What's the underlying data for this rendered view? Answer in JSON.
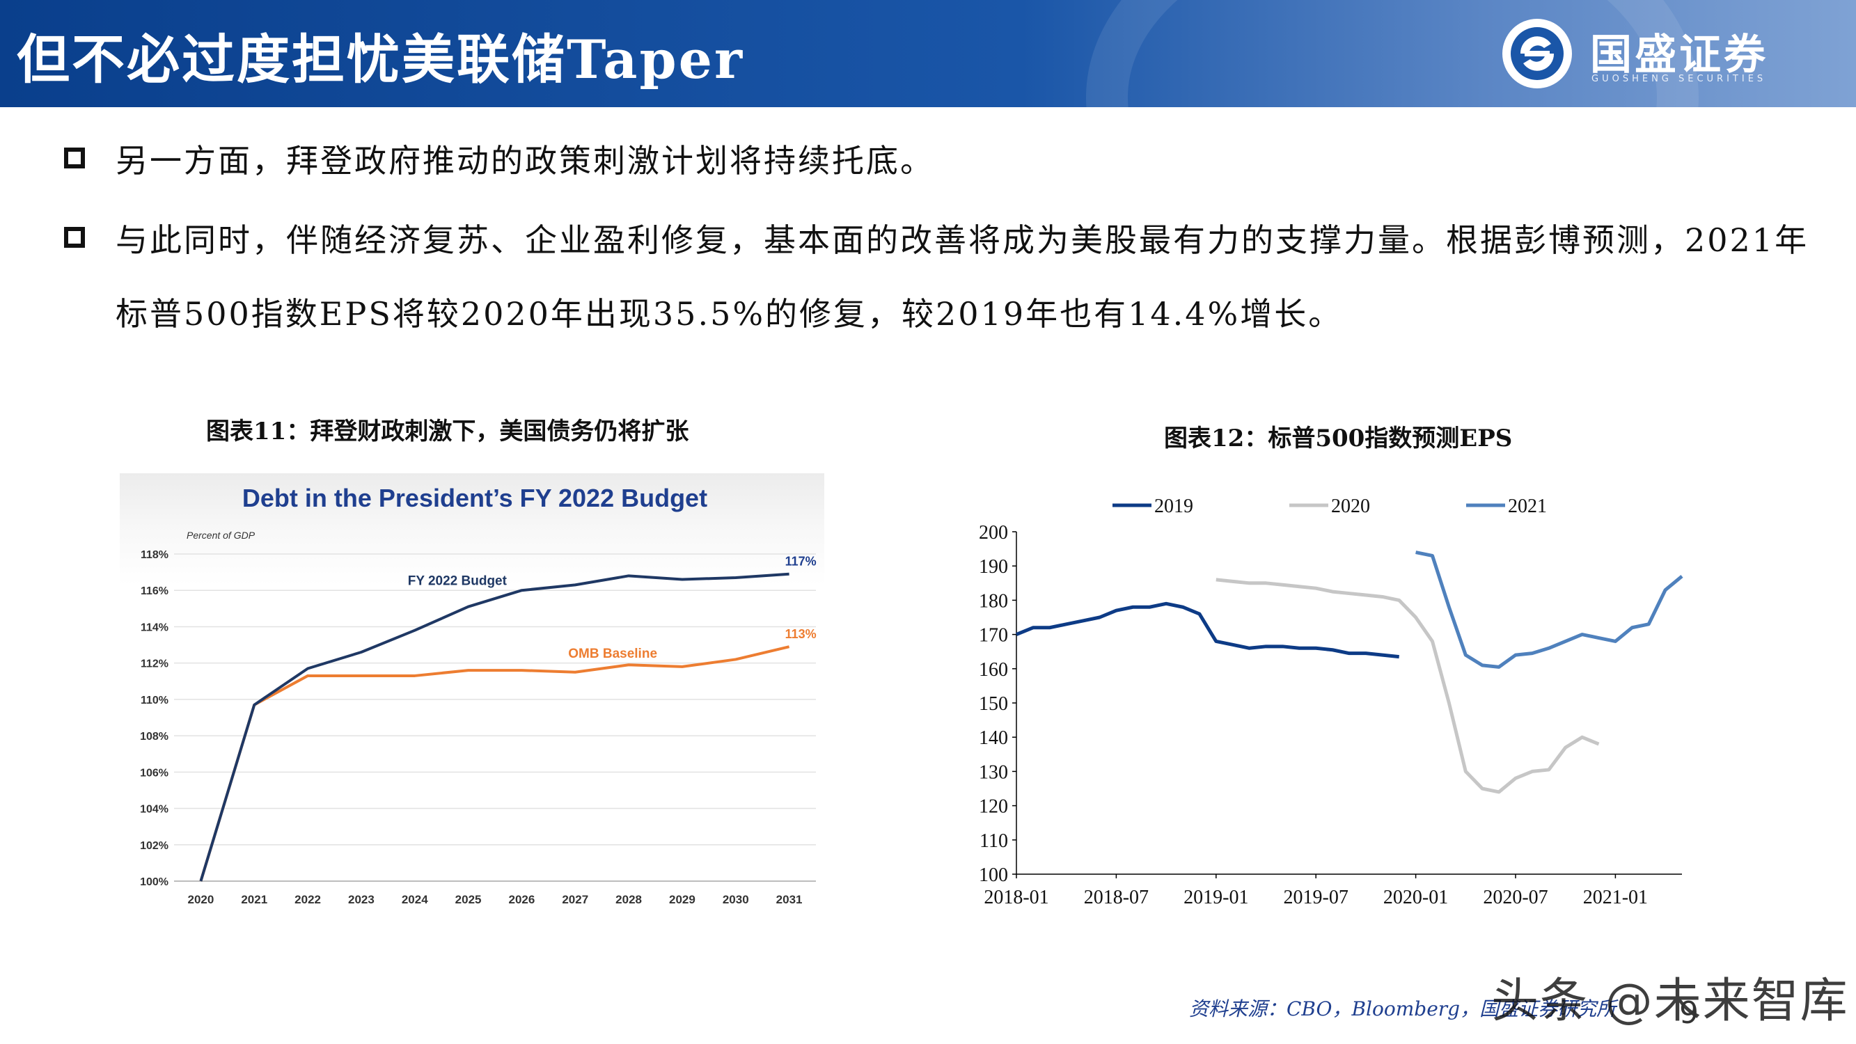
{
  "header": {
    "title": "但不必过度担忧美联储Taper",
    "brand_name": "国盛证券",
    "brand_sub": "GUOSHENG SECURITIES",
    "brand_icon": "guosheng-logo-icon"
  },
  "bullets": [
    {
      "text": "另一方面，拜登政府推动的政策刺激计划将持续托底。"
    },
    {
      "text": "与此同时，伴随经济复苏、企业盈利修复，基本面的改善将成为美股最有力的支撑力量。根据彭博预测，2021年标普500指数EPS将较2020年出现35.5%的修复，较2019年也有14.4%增长。"
    }
  ],
  "figures": {
    "fig11_title": "图表11：拜登财政刺激下，美国债务仍将扩张",
    "fig12_title": "图表12：标普500指数预测EPS"
  },
  "colors": {
    "header_blue": "#0a3f8c",
    "chart_navy": "#1f3864",
    "chart_orange": "#ed7d31",
    "eps_2019": "#0d3b86",
    "eps_2020": "#c6c6c6",
    "eps_2021": "#4f81bd"
  },
  "chart_data": [
    {
      "id": "fig11",
      "type": "line",
      "title": "Debt in the President’s FY 2022 Budget",
      "ylabel": "Percent of GDP",
      "ylim": [
        100,
        118
      ],
      "yticks": [
        "100%",
        "102%",
        "104%",
        "106%",
        "108%",
        "110%",
        "112%",
        "114%",
        "116%",
        "118%"
      ],
      "categories": [
        "2020",
        "2021",
        "2022",
        "2023",
        "2024",
        "2025",
        "2026",
        "2027",
        "2028",
        "2029",
        "2030",
        "2031"
      ],
      "series": [
        {
          "name": "FY 2022 Budget",
          "end_label": "117%",
          "values": [
            100.0,
            109.7,
            111.7,
            112.6,
            113.8,
            115.1,
            116.0,
            116.3,
            116.8,
            116.6,
            116.7,
            116.9
          ]
        },
        {
          "name": "OMB Baseline",
          "end_label": "113%",
          "values": [
            100.0,
            109.7,
            111.3,
            111.3,
            111.3,
            111.6,
            111.6,
            111.5,
            111.9,
            111.8,
            112.2,
            112.9
          ]
        }
      ]
    },
    {
      "id": "fig12",
      "type": "line",
      "title": "",
      "ylim": [
        100,
        200
      ],
      "yticks": [
        "100",
        "110",
        "120",
        "130",
        "140",
        "150",
        "160",
        "170",
        "180",
        "190",
        "200"
      ],
      "xticks": [
        "2018-01",
        "2018-07",
        "2019-01",
        "2019-07",
        "2020-01",
        "2020-07",
        "2021-01"
      ],
      "x_start": "2018-01",
      "x_end": "2021-04",
      "legend_position": "top",
      "series": [
        {
          "name": "2019",
          "start_month_index": 0,
          "values": [
            170,
            172,
            172,
            173,
            174,
            175,
            177,
            178,
            178,
            179,
            178,
            176,
            168,
            167,
            166,
            166.5,
            166.5,
            166,
            166,
            165.5,
            164.5,
            164.5,
            164,
            163.5
          ]
        },
        {
          "name": "2020",
          "start_month_index": 12,
          "values": [
            186,
            185.5,
            185,
            185,
            184.5,
            184,
            183.5,
            182.5,
            182,
            181.5,
            181,
            180,
            175,
            168,
            150,
            130,
            125,
            124,
            128,
            130,
            130.5,
            137,
            140,
            138
          ]
        },
        {
          "name": "2021",
          "start_month_index": 24,
          "values": [
            194,
            193,
            178,
            164,
            161,
            160.5,
            164,
            164.5,
            166,
            168,
            170,
            169,
            168,
            172,
            173,
            183,
            187
          ]
        }
      ]
    }
  ],
  "footer": {
    "source": "资料来源：CBO，Bloomberg，国盛证券研究所",
    "watermark": "头条 @未来智库",
    "page_number": "9"
  }
}
